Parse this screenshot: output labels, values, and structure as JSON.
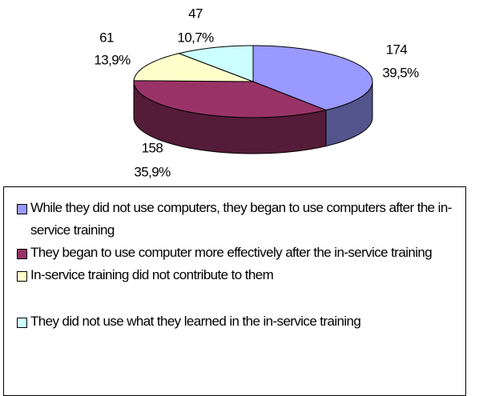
{
  "chart_data": {
    "type": "pie",
    "categories": [
      "While they did not use computers, they began to use computers after the in-service training",
      "They began to use computer more effectively after the in-service training",
      "In-service training did not contribute to them",
      "They did not use what they learned in the in-service training"
    ],
    "values": [
      174,
      158,
      61,
      47
    ],
    "percentages": [
      39.5,
      35.9,
      13.9,
      10.7
    ],
    "percentage_labels": [
      "39,5%",
      "35,9%",
      "13,9%",
      "10,7%"
    ],
    "colors": [
      "#9999ff",
      "#993366",
      "#ffffcc",
      "#ccffff"
    ],
    "legend": "bottom"
  }
}
